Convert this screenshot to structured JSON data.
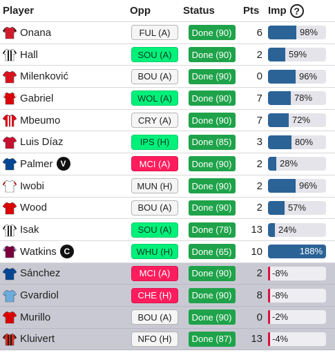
{
  "header": {
    "player": "Player",
    "opp": "Opp",
    "status": "Status",
    "pts": "Pts",
    "imp": "Imp",
    "help_glyph": "?"
  },
  "rows": [
    {
      "name": "Onana",
      "shirt": {
        "primary": "#d11b2c",
        "stripe": "#d11b2c",
        "sleeve": "#1a1a1a"
      },
      "opp": "FUL (A)",
      "opp_difficulty": "neutral",
      "status": "Done (90)",
      "pts": "6",
      "imp": "98%",
      "imp_value": 98,
      "badge": "",
      "bench": false
    },
    {
      "name": "Hall",
      "shirt": {
        "primary": "#ffffff",
        "stripe": "#1a1a1a",
        "sleeve": "#1a1a1a"
      },
      "opp": "SOU (A)",
      "opp_difficulty": "easy",
      "status": "Done (90)",
      "pts": "2",
      "imp": "59%",
      "imp_value": 59,
      "badge": "",
      "bench": false
    },
    {
      "name": "Milenković",
      "shirt": {
        "primary": "#d9121f",
        "stripe": "#d9121f",
        "sleeve": "#d9121f"
      },
      "opp": "BOU (A)",
      "opp_difficulty": "neutral",
      "status": "Done (90)",
      "pts": "0",
      "imp": "96%",
      "imp_value": 96,
      "badge": "",
      "bench": false
    },
    {
      "name": "Gabriel",
      "shirt": {
        "primary": "#db0007",
        "stripe": "#db0007",
        "sleeve": "#ffffff"
      },
      "opp": "WOL (A)",
      "opp_difficulty": "easy",
      "status": "Done (90)",
      "pts": "7",
      "imp": "78%",
      "imp_value": 78,
      "badge": "",
      "bench": false
    },
    {
      "name": "Mbeumo",
      "shirt": {
        "primary": "#e30613",
        "stripe": "#ffffff",
        "sleeve": "#e30613"
      },
      "opp": "CRY (A)",
      "opp_difficulty": "neutral",
      "status": "Done (90)",
      "pts": "7",
      "imp": "72%",
      "imp_value": 72,
      "badge": "",
      "bench": false
    },
    {
      "name": "Luis Díaz",
      "shirt": {
        "primary": "#c8102e",
        "stripe": "#c8102e",
        "sleeve": "#c8102e"
      },
      "opp": "IPS (H)",
      "opp_difficulty": "easy",
      "status": "Done (85)",
      "pts": "3",
      "imp": "80%",
      "imp_value": 80,
      "badge": "",
      "bench": false
    },
    {
      "name": "Palmer",
      "shirt": {
        "primary": "#034694",
        "stripe": "#034694",
        "sleeve": "#034694"
      },
      "opp": "MCI (A)",
      "opp_difficulty": "hard",
      "status": "Done (90)",
      "pts": "2",
      "imp": "28%",
      "imp_value": 28,
      "badge": "V",
      "bench": false
    },
    {
      "name": "Iwobi",
      "shirt": {
        "primary": "#ffffff",
        "stripe": "#ffffff",
        "sleeve": "#cc0000"
      },
      "opp": "MUN (H)",
      "opp_difficulty": "neutral",
      "status": "Done (90)",
      "pts": "2",
      "imp": "96%",
      "imp_value": 96,
      "badge": "",
      "bench": false
    },
    {
      "name": "Wood",
      "shirt": {
        "primary": "#dd0000",
        "stripe": "#dd0000",
        "sleeve": "#dd0000"
      },
      "opp": "BOU (A)",
      "opp_difficulty": "neutral",
      "status": "Done (90)",
      "pts": "2",
      "imp": "57%",
      "imp_value": 57,
      "badge": "",
      "bench": false
    },
    {
      "name": "Isak",
      "shirt": {
        "primary": "#ffffff",
        "stripe": "#1a1a1a",
        "sleeve": "#1a1a1a"
      },
      "opp": "SOU (A)",
      "opp_difficulty": "easy",
      "status": "Done (78)",
      "pts": "13",
      "imp": "24%",
      "imp_value": 24,
      "badge": "",
      "bench": false
    },
    {
      "name": "Watkins",
      "shirt": {
        "primary": "#7a003c",
        "stripe": "#7a003c",
        "sleeve": "#95bfe5"
      },
      "opp": "WHU (H)",
      "opp_difficulty": "easy",
      "status": "Done (65)",
      "pts": "10",
      "imp": "188%",
      "imp_value": 188,
      "badge": "C",
      "bench": false
    },
    {
      "name": "Sánchez",
      "shirt": {
        "primary": "#034694",
        "stripe": "#034694",
        "sleeve": "#034694"
      },
      "opp": "MCI (A)",
      "opp_difficulty": "hard",
      "status": "Done (90)",
      "pts": "2",
      "imp": "-8%",
      "imp_value": -8,
      "badge": "",
      "bench": true
    },
    {
      "name": "Gvardiol",
      "shirt": {
        "primary": "#6cabdd",
        "stripe": "#6cabdd",
        "sleeve": "#6cabdd"
      },
      "opp": "CHE (H)",
      "opp_difficulty": "hard",
      "status": "Done (90)",
      "pts": "8",
      "imp": "-8%",
      "imp_value": -8,
      "badge": "",
      "bench": true
    },
    {
      "name": "Murillo",
      "shirt": {
        "primary": "#dd0000",
        "stripe": "#dd0000",
        "sleeve": "#dd0000"
      },
      "opp": "BOU (A)",
      "opp_difficulty": "neutral",
      "status": "Done (90)",
      "pts": "0",
      "imp": "-2%",
      "imp_value": -2,
      "badge": "",
      "bench": true
    },
    {
      "name": "Kluivert",
      "shirt": {
        "primary": "#da291c",
        "stripe": "#1a1a1a",
        "sleeve": "#1a1a1a"
      },
      "opp": "NFO (H)",
      "opp_difficulty": "neutral",
      "status": "Done (87)",
      "pts": "13",
      "imp": "-4%",
      "imp_value": -4,
      "badge": "",
      "bench": true
    }
  ]
}
